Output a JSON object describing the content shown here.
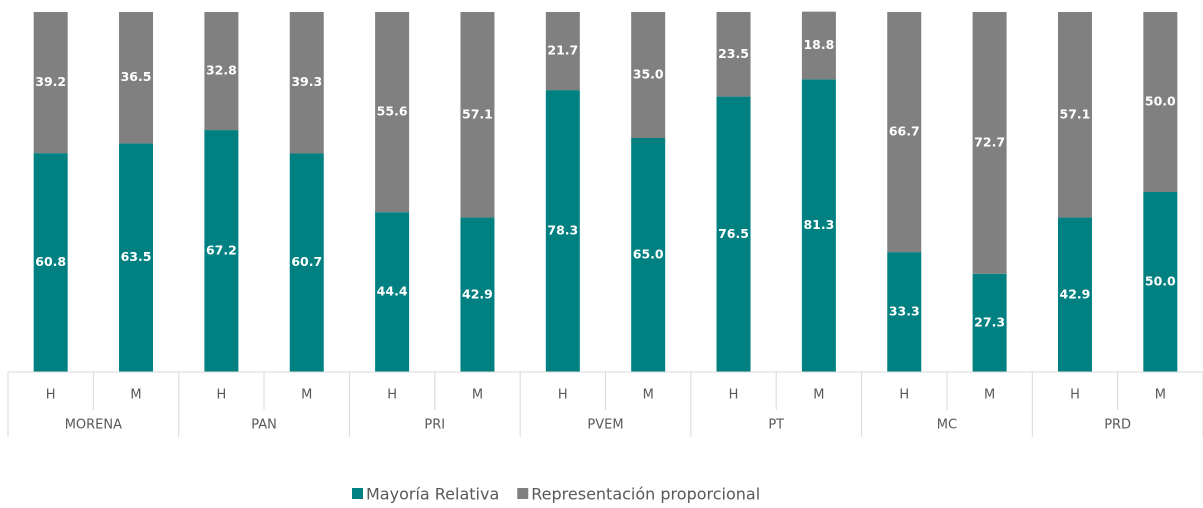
{
  "chart_data": {
    "type": "stacked_bar",
    "categories": [
      "H",
      "M",
      "H",
      "M",
      "H",
      "M",
      "H",
      "M",
      "H",
      "M",
      "H",
      "M",
      "H",
      "M"
    ],
    "groups": [
      "MORENA",
      "PAN",
      "PRI",
      "PVEM",
      "PT",
      "MC",
      "PRD"
    ],
    "ylim": [
      0,
      100
    ],
    "series": [
      {
        "name": "Mayoría Relativa",
        "color": "#008080",
        "values": [
          60.8,
          63.5,
          67.2,
          60.7,
          44.4,
          42.9,
          78.3,
          65.0,
          76.5,
          81.3,
          33.3,
          27.3,
          42.9,
          50.0
        ],
        "value_labels": [
          "60.8",
          "63.5",
          "67.2",
          "60.7",
          "44.4",
          "42.9",
          "78.3",
          "65.0",
          "76.5",
          "81.3",
          "33.3",
          "27.3",
          "42.9",
          "50.0"
        ]
      },
      {
        "name": "Representación proporcional",
        "color": "#808080",
        "values": [
          39.2,
          36.5,
          32.8,
          39.3,
          55.6,
          57.1,
          21.7,
          35.0,
          23.5,
          18.8,
          66.7,
          72.7,
          57.1,
          50.0
        ],
        "value_labels": [
          "39.2",
          "36.5",
          "32.8",
          "39.3",
          "55.6",
          "57.1",
          "21.7",
          "35.0",
          "23.5",
          "18.8",
          "66.7",
          "72.7",
          "57.1",
          "50.0"
        ]
      }
    ],
    "legend": "bottom"
  }
}
